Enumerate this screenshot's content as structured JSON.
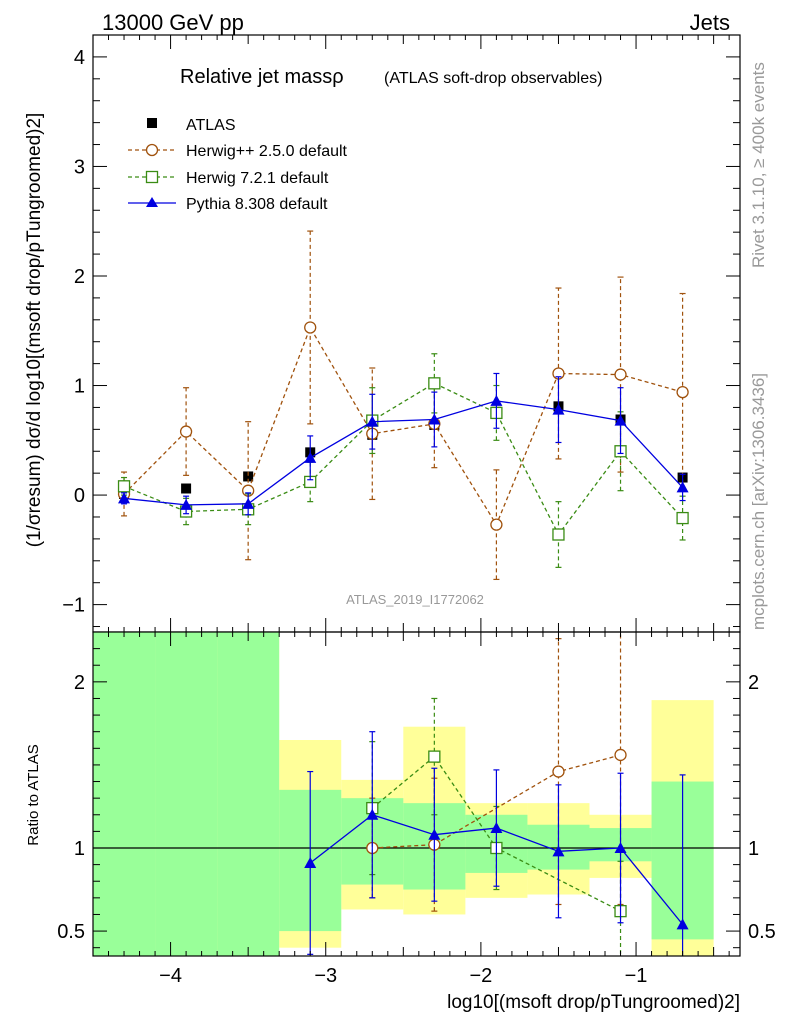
{
  "header": {
    "left": "13000 GeV pp",
    "right": "Jets",
    "watermark_top": "Rivet 3.1.10, ≥ 400k events",
    "watermark_bottom": "mcplots.cern.ch [arXiv:1306.3436]",
    "analysis_id": "ATLAS_2019_I1772062"
  },
  "legend": {
    "title_main": "Relative jet massρ",
    "title_sub": "(ATLAS soft-drop observables)",
    "entries": [
      "ATLAS",
      "Herwig++ 2.5.0 default",
      "Herwig 7.2.1 default",
      "Pythia 8.308 default"
    ]
  },
  "axes": {
    "ylabel_main": "(1/σresum) dσ/d log10[(msoft drop/pTungroomed)2]",
    "ylabel_ratio": "Ratio to ATLAS",
    "xlabel": "log10[(msoft drop/pTungroomed)2]"
  },
  "colors": {
    "atlas": "#000000",
    "herwigpp": "#a0520d",
    "herwig7": "#3a8c14",
    "pythia": "#0000e0",
    "band_green": "#99ff99",
    "band_yellow": "#ffff99"
  },
  "chart_data": [
    {
      "type": "scatter",
      "title": "Relative jet massρ (ATLAS soft-drop observables)",
      "xlabel": "log10[(m^soft drop/pT^ungroomed)^2]",
      "ylabel": "(1/σresum) dσ/d log10[(m^soft drop/pT^ungroomed)^2]",
      "xlim": [
        -4.5,
        -0.33
      ],
      "ylim": [
        -1.25,
        4.2
      ],
      "xticks": [
        -4,
        -3,
        -2,
        -1
      ],
      "yticks": [
        -1,
        0,
        1,
        2,
        3,
        4
      ],
      "x": [
        -4.3,
        -3.9,
        -3.5,
        -3.1,
        -2.7,
        -2.3,
        -1.9,
        -1.5,
        -1.1,
        -0.7
      ],
      "series": [
        {
          "name": "ATLAS",
          "values": [
            0.01,
            0.06,
            0.17,
            0.39,
            0.55,
            0.64,
            0.76,
            0.81,
            0.69,
            0.16
          ],
          "err": [
            0.02,
            0.02,
            0.02,
            0.03,
            0.03,
            0.03,
            0.03,
            0.03,
            0.03,
            0.02
          ]
        },
        {
          "name": "Herwig++ 2.5.0 default",
          "values": [
            0.01,
            0.58,
            0.04,
            1.53,
            0.56,
            0.65,
            -0.27,
            1.11,
            1.1,
            0.94
          ],
          "err": [
            0.2,
            0.4,
            0.63,
            0.88,
            0.6,
            0.4,
            0.5,
            0.78,
            0.89,
            0.9
          ]
        },
        {
          "name": "Herwig 7.2.1 default",
          "values": [
            0.08,
            -0.15,
            -0.13,
            0.12,
            0.68,
            1.02,
            0.75,
            -0.36,
            0.4,
            -0.21
          ],
          "err": [
            0.08,
            0.12,
            0.14,
            0.18,
            0.3,
            0.27,
            0.25,
            0.3,
            0.36,
            0.2
          ]
        },
        {
          "name": "Pythia 8.308 default",
          "values": [
            -0.03,
            -0.09,
            -0.08,
            0.34,
            0.67,
            0.69,
            0.86,
            0.78,
            0.68,
            0.07
          ],
          "err": [
            0.05,
            0.08,
            0.1,
            0.2,
            0.25,
            0.25,
            0.25,
            0.3,
            0.3,
            0.12
          ]
        }
      ]
    },
    {
      "type": "scatter",
      "ylabel": "Ratio to ATLAS",
      "xlabel": "log10[(m^soft drop/pT^ungroomed)^2]",
      "xlim": [
        -4.5,
        -0.33
      ],
      "ylim": [
        0.35,
        2.3
      ],
      "xticks": [
        -4,
        -3,
        -2,
        -1
      ],
      "yticks": [
        0.5,
        1,
        2
      ],
      "x": [
        -4.3,
        -3.9,
        -3.5,
        -3.1,
        -2.7,
        -2.3,
        -1.9,
        -1.5,
        -1.1,
        -0.7
      ],
      "bands": {
        "edges": [
          -4.5,
          -4.1,
          -3.7,
          -3.3,
          -2.9,
          -2.5,
          -2.1,
          -1.7,
          -1.3,
          -0.9,
          -0.5
        ],
        "green_lo": [
          0.35,
          0.35,
          0.35,
          0.5,
          0.78,
          0.75,
          0.85,
          0.87,
          0.92,
          0.45
        ],
        "green_hi": [
          2.3,
          2.3,
          2.3,
          1.35,
          1.3,
          1.27,
          1.2,
          1.14,
          1.12,
          1.4
        ],
        "yellow_lo": [
          0.35,
          0.35,
          0.35,
          0.4,
          0.63,
          0.6,
          0.7,
          0.72,
          0.82,
          0.35
        ],
        "yellow_hi": [
          2.3,
          2.3,
          2.3,
          1.65,
          1.41,
          1.73,
          1.27,
          1.27,
          1.2,
          1.89
        ]
      },
      "series": [
        {
          "name": "Herwig++ 2.5.0 default",
          "values": [
            null,
            null,
            null,
            null,
            1.0,
            1.02,
            null,
            1.46,
            1.56,
            null
          ],
          "err": [
            0,
            0,
            0,
            0,
            0.3,
            0.4,
            0,
            0.8,
            0.9,
            0
          ]
        },
        {
          "name": "Herwig 7.2.1 default",
          "values": [
            null,
            null,
            null,
            null,
            1.24,
            1.55,
            1.0,
            null,
            0.62,
            null
          ],
          "err": [
            0,
            0,
            0,
            0,
            0.4,
            0.35,
            0.25,
            0,
            0.3,
            0
          ]
        },
        {
          "name": "Pythia 8.308 default",
          "values": [
            null,
            null,
            null,
            0.91,
            1.2,
            1.08,
            1.12,
            0.98,
            1.0,
            0.54
          ],
          "err": [
            0,
            0,
            0,
            0.55,
            0.5,
            0.4,
            0.35,
            0.4,
            0.45,
            0.9
          ]
        }
      ]
    }
  ]
}
